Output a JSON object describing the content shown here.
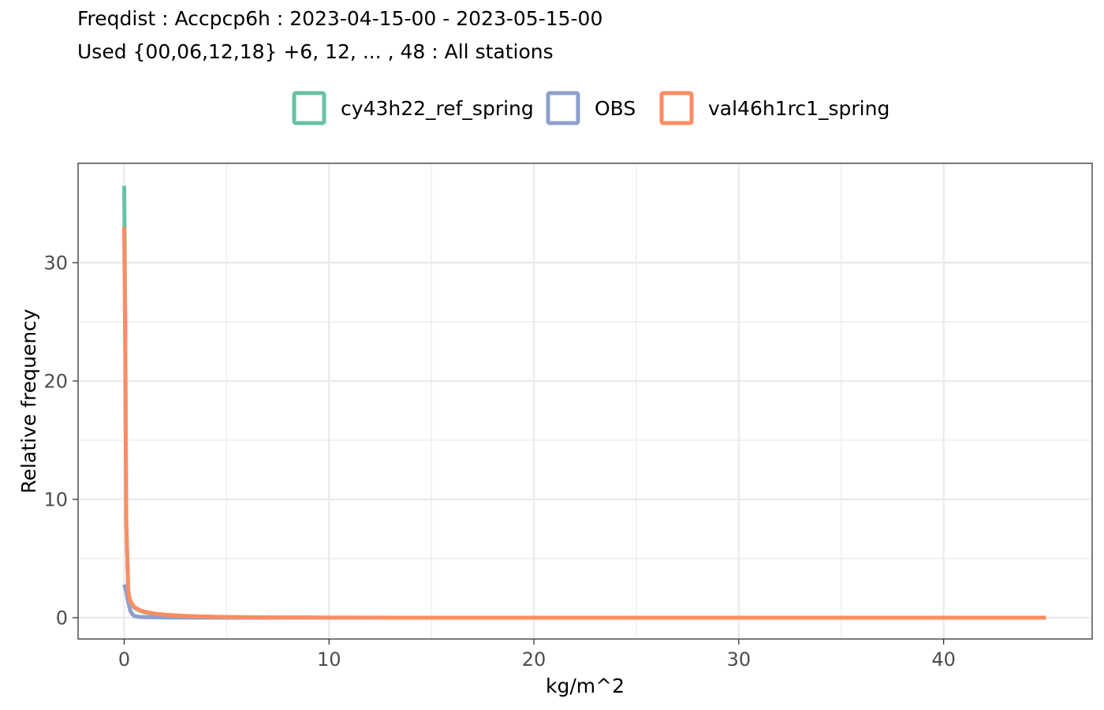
{
  "chart_data": {
    "type": "line",
    "title": "Freqdist : Accpcp6h : 2023-04-15-00 - 2023-05-15-00",
    "subtitle": "Used {00,06,12,18} +6, 12, ... , 48 : All stations",
    "xlabel": "kg/m^2",
    "ylabel": "Relative frequency",
    "xlim": [
      -2.25,
      47.25
    ],
    "ylim": [
      -1.8,
      38.4
    ],
    "x_ticks": [
      0,
      10,
      20,
      30,
      40
    ],
    "y_ticks": [
      0,
      10,
      20,
      30
    ],
    "grid": true,
    "legend_position": "top",
    "series": [
      {
        "name": "cy43h22_ref_spring",
        "color": "#66c2a5",
        "x": [
          0,
          0.05,
          0.1,
          0.2,
          0.3,
          0.5,
          0.75,
          1,
          1.5,
          2,
          3,
          4,
          5,
          7.5,
          10,
          15,
          20,
          30,
          40,
          45
        ],
        "y": [
          36.5,
          25,
          8,
          2.2,
          1.3,
          0.85,
          0.6,
          0.45,
          0.3,
          0.22,
          0.13,
          0.08,
          0.05,
          0.02,
          0.01,
          0,
          0,
          0,
          0,
          0
        ]
      },
      {
        "name": "OBS",
        "color": "#8da0cb",
        "x": [
          0,
          0.1,
          0.2,
          0.3,
          0.4,
          0.5,
          0.75,
          1,
          1.5,
          2,
          3,
          5,
          10,
          20,
          30,
          40,
          45
        ],
        "y": [
          2.8,
          2.2,
          1.3,
          0.6,
          0.3,
          0.15,
          0.07,
          0.05,
          0.03,
          0.02,
          0.01,
          0,
          0,
          0,
          0,
          0,
          0
        ]
      },
      {
        "name": "val46h1rc1_spring",
        "color": "#fc8d62",
        "x": [
          0,
          0.05,
          0.1,
          0.2,
          0.3,
          0.5,
          0.75,
          1,
          1.5,
          2,
          3,
          4,
          5,
          7.5,
          10,
          15,
          20,
          30,
          40,
          45
        ],
        "y": [
          33,
          23,
          8,
          2.2,
          1.4,
          0.9,
          0.65,
          0.5,
          0.35,
          0.25,
          0.15,
          0.09,
          0.06,
          0.02,
          0.01,
          0,
          0,
          0,
          0,
          0
        ]
      }
    ]
  }
}
